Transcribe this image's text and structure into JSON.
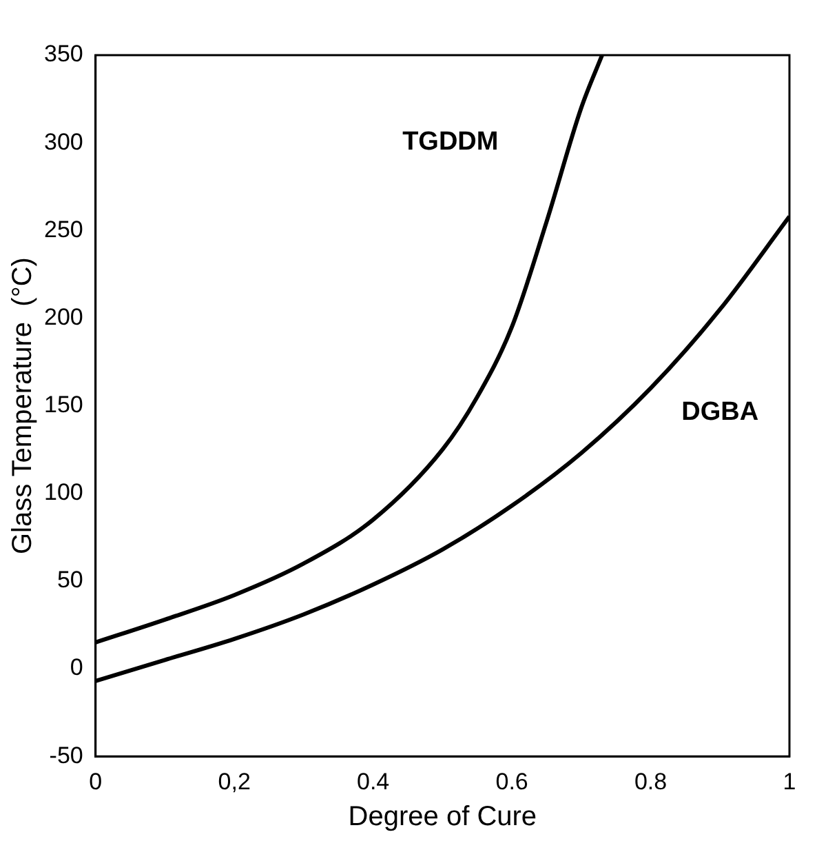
{
  "chart_data": {
    "type": "line",
    "xlabel": "Degree of Cure",
    "ylabel": "Glass Temperature  (°C)",
    "xlim": [
      0,
      1
    ],
    "xticks": [
      0,
      {
        "value": 0.2,
        "label": "0,2"
      },
      {
        "value": 0.4,
        "label": "0.4"
      },
      {
        "value": 0.6,
        "label": "0.6"
      },
      {
        "value": 0.8,
        "label": "0.8"
      },
      1
    ],
    "ylim": [
      -50,
      350
    ],
    "yticks": [
      -50,
      0,
      50,
      100,
      150,
      200,
      250,
      300,
      350
    ],
    "grid": false,
    "legend": false,
    "marker": "none",
    "line_style": "solid",
    "series": [
      {
        "name": "TGDDM",
        "color": "#000000",
        "x": [
          0,
          0.1,
          0.2,
          0.3,
          0.4,
          0.5,
          0.55,
          0.6,
          0.65,
          0.7,
          0.73
        ],
        "values": [
          15,
          28,
          42,
          60,
          85,
          125,
          155,
          195,
          255,
          320,
          350
        ]
      },
      {
        "name": "DGBA",
        "color": "#000000",
        "x": [
          0,
          0.1,
          0.2,
          0.3,
          0.4,
          0.5,
          0.6,
          0.7,
          0.8,
          0.9,
          1
        ],
        "values": [
          -7,
          5,
          17,
          31,
          48,
          68,
          93,
          123,
          160,
          205,
          258
        ]
      }
    ]
  }
}
